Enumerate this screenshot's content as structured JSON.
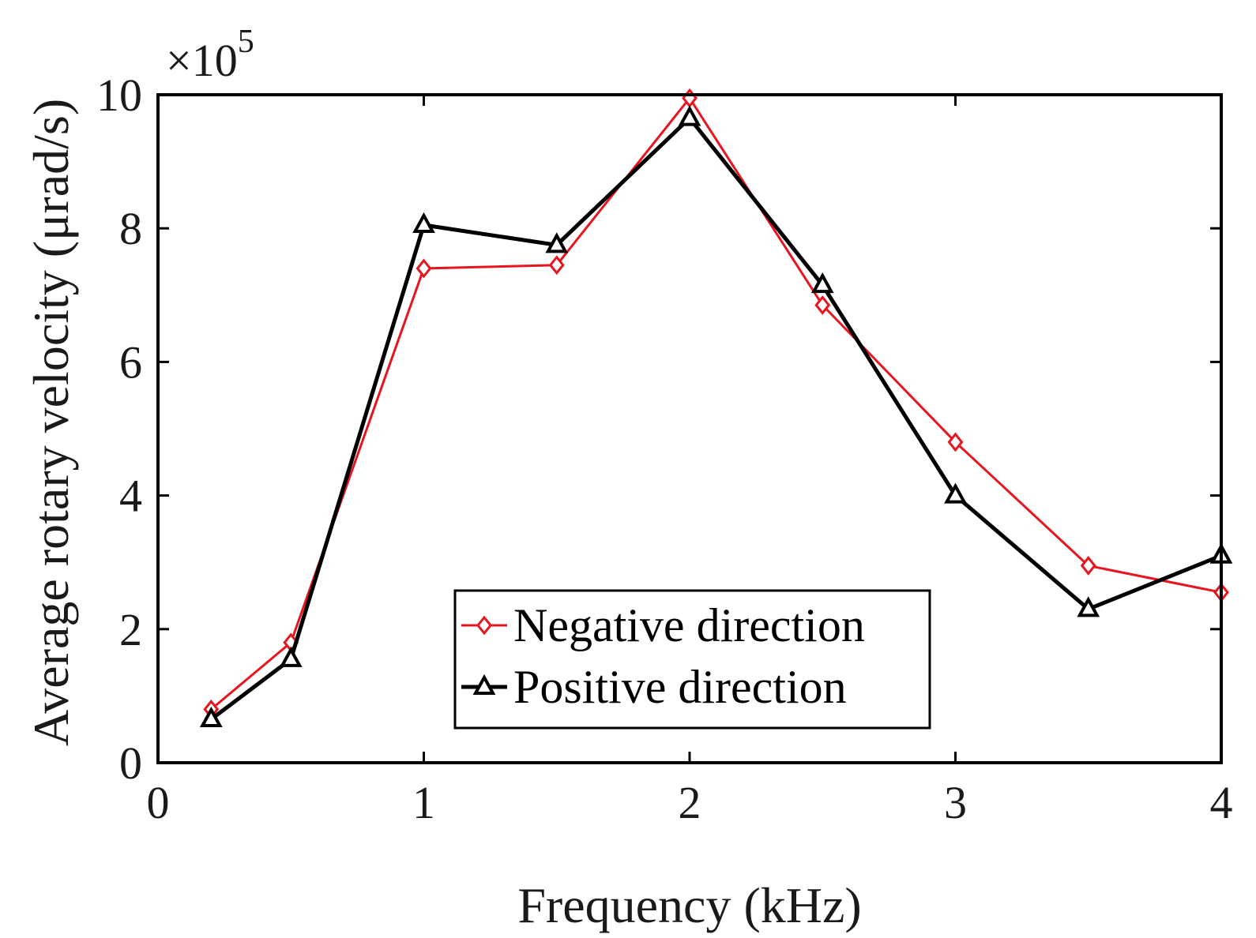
{
  "chart_data": {
    "type": "line",
    "title": "",
    "xlabel": "Frequency (kHz)",
    "ylabel": "Average rotary velocity (μrad/s)",
    "exponent_label": {
      "base": "×10",
      "power": "5"
    },
    "xlim": [
      0,
      4
    ],
    "ylim": [
      0,
      10
    ],
    "xticks": [
      "0",
      "1",
      "2",
      "3",
      "4"
    ],
    "yticks": [
      "0",
      "2",
      "4",
      "6",
      "8",
      "10"
    ],
    "grid": false,
    "legend_position": "bottom-center",
    "series": [
      {
        "name": "Negative direction",
        "color": "#e8141e",
        "marker": "diamond",
        "x": [
          0.2,
          0.5,
          1.0,
          1.5,
          2.0,
          2.5,
          3.0,
          3.5,
          4.0
        ],
        "y": [
          0.8,
          1.8,
          7.4,
          7.45,
          9.95,
          6.85,
          4.8,
          2.95,
          2.55
        ]
      },
      {
        "name": "Positive direction",
        "color": "#000000",
        "marker": "triangle",
        "x": [
          0.2,
          0.5,
          1.0,
          1.5,
          2.0,
          2.5,
          3.0,
          3.5,
          4.0
        ],
        "y": [
          0.65,
          1.55,
          8.05,
          7.75,
          9.65,
          7.15,
          4.0,
          2.3,
          3.1
        ]
      }
    ]
  }
}
